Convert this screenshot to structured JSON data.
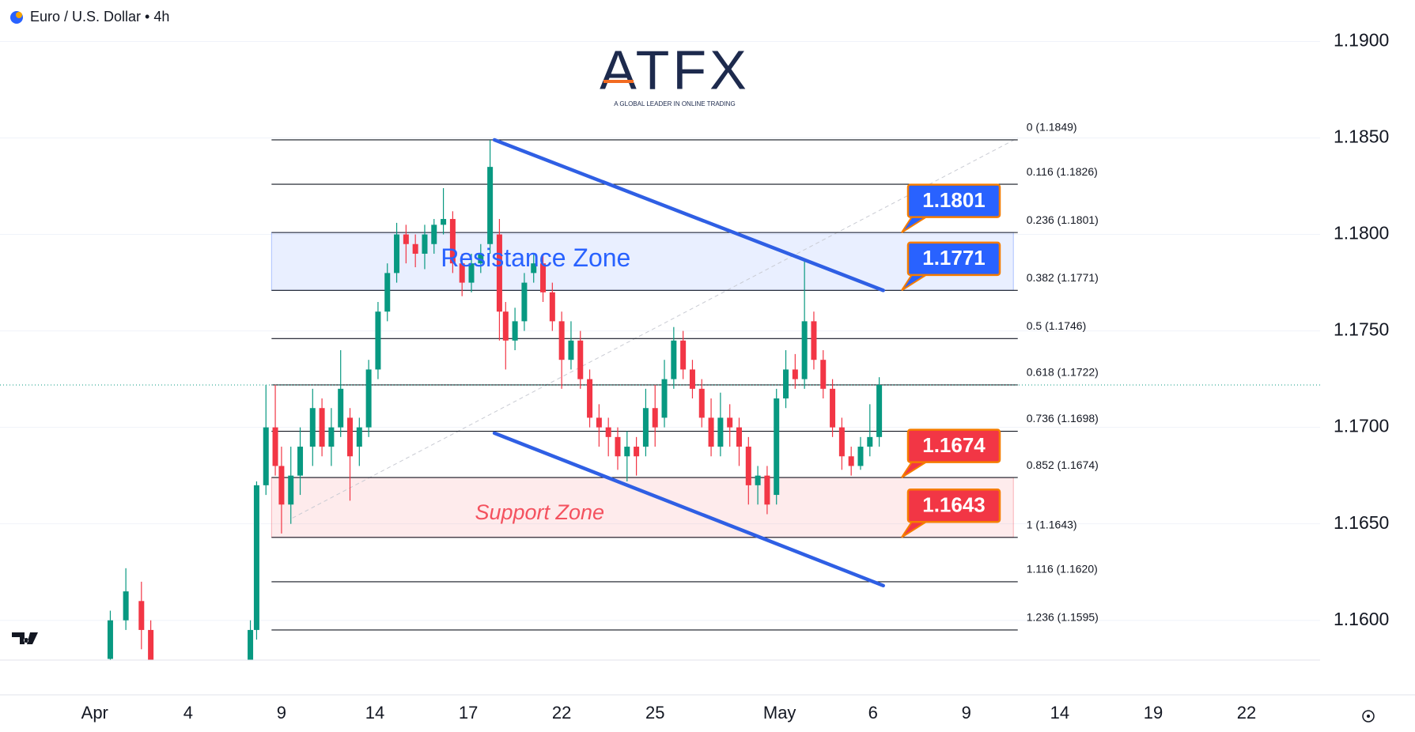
{
  "title": "Euro / U.S. Dollar • 4h",
  "logo": {
    "name": "ATFX",
    "tagline": "A GLOBAL LEADER IN ONLINE TRADING"
  },
  "chart_data": {
    "type": "candlestick",
    "x": [
      0.5,
      1.0,
      1.5,
      1.8,
      5.0,
      5.2,
      5.5,
      5.8,
      6.0,
      6.3,
      6.6,
      7.0,
      7.3,
      7.6,
      7.9,
      8.2,
      8.5,
      8.8,
      9.1,
      9.4,
      9.7,
      10.0,
      10.3,
      10.6,
      10.9,
      11.2,
      11.5,
      11.8,
      12.1,
      12.4,
      12.7,
      13.0,
      13.2,
      13.5,
      13.8,
      14.1,
      14.4,
      14.7,
      15.0,
      15.3,
      15.6,
      15.9,
      16.2,
      16.5,
      16.8,
      17.1,
      17.4,
      17.7,
      18.0,
      18.3,
      18.6,
      18.9,
      19.2,
      19.5,
      19.8,
      20.1,
      20.4,
      20.7,
      21.0,
      21.3,
      21.6,
      21.9,
      22.2,
      22.5,
      22.8,
      23.1,
      23.4,
      23.7,
      24.0,
      24.3,
      24.6,
      24.9,
      25.2
    ],
    "open": [
      1.158,
      1.16,
      1.161,
      1.1595,
      1.1575,
      1.1595,
      1.167,
      1.17,
      1.168,
      1.166,
      1.1675,
      1.169,
      1.171,
      1.169,
      1.17,
      1.1705,
      1.169,
      1.17,
      1.173,
      1.176,
      1.178,
      1.18,
      1.1795,
      1.179,
      1.1795,
      1.1805,
      1.1808,
      1.1785,
      1.1775,
      1.1785,
      1.1795,
      1.18,
      1.176,
      1.1745,
      1.1755,
      1.178,
      1.1785,
      1.177,
      1.1755,
      1.1735,
      1.1745,
      1.1725,
      1.1705,
      1.17,
      1.1695,
      1.1685,
      1.169,
      1.169,
      1.171,
      1.1705,
      1.1725,
      1.1745,
      1.173,
      1.172,
      1.1705,
      1.169,
      1.1705,
      1.17,
      1.169,
      1.167,
      1.1675,
      1.1665,
      1.1715,
      1.173,
      1.1725,
      1.1755,
      1.1735,
      1.172,
      1.17,
      1.1685,
      1.168,
      1.169,
      1.1695
    ],
    "high": [
      1.1605,
      1.1627,
      1.162,
      1.16,
      1.16,
      1.1672,
      1.1722,
      1.1722,
      1.169,
      1.169,
      1.17,
      1.172,
      1.1715,
      1.171,
      1.174,
      1.171,
      1.1705,
      1.1735,
      1.1765,
      1.1785,
      1.1806,
      1.1805,
      1.18,
      1.1805,
      1.1808,
      1.1824,
      1.1812,
      1.179,
      1.179,
      1.1795,
      1.1849,
      1.1808,
      1.1765,
      1.1762,
      1.178,
      1.179,
      1.179,
      1.1775,
      1.176,
      1.1755,
      1.175,
      1.173,
      1.1712,
      1.1705,
      1.17,
      1.1698,
      1.1695,
      1.172,
      1.1722,
      1.1735,
      1.1752,
      1.175,
      1.1735,
      1.1725,
      1.1715,
      1.1718,
      1.1712,
      1.1705,
      1.1695,
      1.168,
      1.168,
      1.172,
      1.174,
      1.1738,
      1.1786,
      1.176,
      1.174,
      1.1725,
      1.1705,
      1.169,
      1.1695,
      1.1712,
      1.1726
    ],
    "low": [
      1.1575,
      1.1595,
      1.1585,
      1.157,
      1.157,
      1.159,
      1.1665,
      1.1675,
      1.1645,
      1.165,
      1.1665,
      1.168,
      1.1685,
      1.168,
      1.1695,
      1.1662,
      1.168,
      1.1695,
      1.1725,
      1.1755,
      1.1775,
      1.1785,
      1.1783,
      1.1782,
      1.179,
      1.18,
      1.178,
      1.1768,
      1.177,
      1.178,
      1.179,
      1.1745,
      1.173,
      1.174,
      1.175,
      1.1775,
      1.1765,
      1.175,
      1.172,
      1.173,
      1.172,
      1.17,
      1.169,
      1.1685,
      1.1678,
      1.1672,
      1.1675,
      1.1685,
      1.169,
      1.17,
      1.172,
      1.1725,
      1.1715,
      1.17,
      1.1685,
      1.1685,
      1.169,
      1.168,
      1.166,
      1.166,
      1.1655,
      1.166,
      1.171,
      1.172,
      1.172,
      1.173,
      1.1715,
      1.1695,
      1.1678,
      1.1675,
      1.1678,
      1.1685,
      1.169
    ],
    "close": [
      1.16,
      1.1615,
      1.1595,
      1.1578,
      1.1595,
      1.167,
      1.17,
      1.168,
      1.166,
      1.1675,
      1.169,
      1.171,
      1.169,
      1.17,
      1.172,
      1.1685,
      1.17,
      1.173,
      1.176,
      1.178,
      1.18,
      1.1795,
      1.179,
      1.18,
      1.1805,
      1.1808,
      1.1785,
      1.1775,
      1.1785,
      1.179,
      1.1835,
      1.176,
      1.1745,
      1.1755,
      1.1775,
      1.1785,
      1.177,
      1.1755,
      1.1735,
      1.1745,
      1.1725,
      1.1705,
      1.17,
      1.1695,
      1.1685,
      1.169,
      1.1685,
      1.171,
      1.17,
      1.1725,
      1.1745,
      1.173,
      1.172,
      1.1705,
      1.169,
      1.1705,
      1.17,
      1.169,
      1.167,
      1.1675,
      1.166,
      1.1715,
      1.173,
      1.1725,
      1.1755,
      1.1735,
      1.172,
      1.17,
      1.1685,
      1.168,
      1.169,
      1.1695,
      1.1722
    ],
    "up_color": "#089981",
    "down_color": "#f23645",
    "xlim": [
      -3.043,
      39.362
    ],
    "xticks": [
      {
        "value": 0,
        "label": "Apr"
      },
      {
        "value": 3,
        "label": "4"
      },
      {
        "value": 6,
        "label": "9"
      },
      {
        "value": 9,
        "label": "14"
      },
      {
        "value": 12,
        "label": "17"
      },
      {
        "value": 15,
        "label": "22"
      },
      {
        "value": 18,
        "label": "25"
      },
      {
        "value": 22,
        "label": "May"
      },
      {
        "value": 25,
        "label": "6"
      },
      {
        "value": 28,
        "label": "9"
      },
      {
        "value": 31,
        "label": "14"
      },
      {
        "value": 34,
        "label": "19"
      },
      {
        "value": 37,
        "label": "22"
      }
    ],
    "ylim": [
      1.15794,
      1.19215
    ],
    "yticks": [
      {
        "value": 1.16,
        "label": "1.1600"
      },
      {
        "value": 1.165,
        "label": "1.1650"
      },
      {
        "value": 1.17,
        "label": "1.1700"
      },
      {
        "value": 1.175,
        "label": "1.1750"
      },
      {
        "value": 1.18,
        "label": "1.1800"
      },
      {
        "value": 1.185,
        "label": "1.1850"
      },
      {
        "value": 1.19,
        "label": "1.1900"
      }
    ],
    "grid": true,
    "last_price": 1.1722,
    "fib_x": [
      5.68,
      29.65
    ],
    "fib_levels": [
      {
        "value": 1.1849,
        "label": "0 (1.1849)"
      },
      {
        "value": 1.1826,
        "label": "0.116 (1.1826)"
      },
      {
        "value": 1.1801,
        "label": "0.236 (1.1801)"
      },
      {
        "value": 1.1771,
        "label": "0.382 (1.1771)"
      },
      {
        "value": 1.1746,
        "label": "0.5 (1.1746)"
      },
      {
        "value": 1.1722,
        "label": "0.618 (1.1722)"
      },
      {
        "value": 1.1698,
        "label": "0.736 (1.1698)"
      },
      {
        "value": 1.1674,
        "label": "0.852 (1.1674)"
      },
      {
        "value": 1.1643,
        "label": "1 (1.1643)"
      },
      {
        "value": 1.162,
        "label": "1.116 (1.1620)"
      },
      {
        "value": 1.1595,
        "label": "1.236 (1.1595)"
      }
    ],
    "zones": [
      {
        "name": "Resistance Zone",
        "from": 1.1771,
        "to": 1.1801,
        "x": [
          5.68,
          29.51
        ],
        "color": "#2962ff"
      },
      {
        "name": "Support Zone",
        "from": 1.1643,
        "to": 1.1674,
        "x": [
          5.68,
          29.51
        ],
        "color": "#f23645"
      }
    ],
    "channel": [
      {
        "x": [
          12.84,
          25.33
        ],
        "y": [
          1.1849,
          1.1771
        ]
      },
      {
        "x": [
          12.84,
          25.33
        ],
        "y": [
          1.1697,
          1.1618
        ]
      }
    ],
    "channel_color": "#2f5fe4",
    "trendline": {
      "x": [
        6.35,
        29.65
      ],
      "y": [
        1.1653,
        1.185
      ]
    },
    "callouts": [
      {
        "value": 1.1801,
        "color": "#2962ff"
      },
      {
        "value": 1.1771,
        "color": "#2962ff"
      },
      {
        "value": 1.1674,
        "color": "#f23645"
      },
      {
        "value": 1.1643,
        "color": "#f23645"
      }
    ]
  }
}
